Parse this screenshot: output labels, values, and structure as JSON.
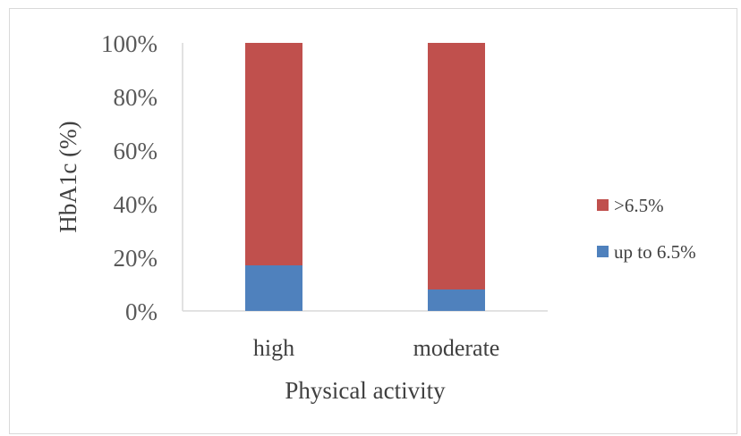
{
  "chart_data": {
    "type": "bar",
    "stacked": true,
    "percent_stacked": true,
    "categories": [
      "high",
      "moderate"
    ],
    "series": [
      {
        "name": "up to 6.5%",
        "values": [
          17,
          8
        ],
        "color": "#4f81bd"
      },
      {
        "name": ">6.5%",
        "values": [
          83,
          92
        ],
        "color": "#c0504d"
      }
    ],
    "xlabel": "Physical activity",
    "ylabel": "HbA1c (%)",
    "ylim": [
      0,
      100
    ],
    "yticks": [
      "0%",
      "20%",
      "40%",
      "60%",
      "80%",
      "100%"
    ],
    "grid": false,
    "legend_position": "right"
  }
}
